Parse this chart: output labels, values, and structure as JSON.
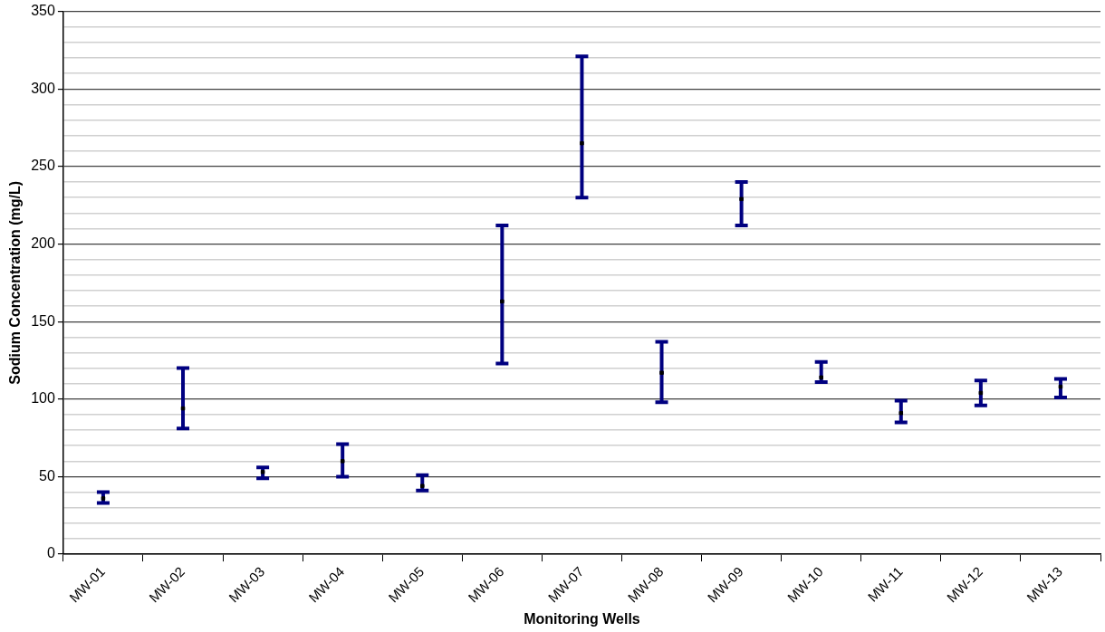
{
  "chart_data": {
    "type": "scatter",
    "xlabel": "Monitoring Wells",
    "ylabel": "Sodium Concentration (mg/L)",
    "categories": [
      "MW-01",
      "MW-02",
      "MW-03",
      "MW-04",
      "MW-05",
      "MW-06",
      "MW-07",
      "MW-08",
      "MW-09",
      "MW-10",
      "MW-11",
      "MW-12",
      "MW-13"
    ],
    "series": [
      {
        "color": "#000080",
        "colors": [
          "#000000",
          "#000000",
          "#000000",
          "#000000",
          "#000000",
          "#000000",
          "#000000",
          "#000000",
          "#000000",
          "#000000",
          "#000000",
          "#000000",
          "#000000"
        ],
        "values": [
          36,
          94,
          53,
          60,
          44,
          163,
          265,
          117,
          229,
          114,
          91,
          104,
          108
        ],
        "errors": [
          [
            33,
            40
          ],
          [
            81,
            120
          ],
          [
            49,
            56
          ],
          [
            50,
            71
          ],
          [
            41,
            51
          ],
          [
            123,
            212
          ],
          [
            230,
            321
          ],
          [
            98,
            137
          ],
          [
            212,
            240
          ],
          [
            111,
            124
          ],
          [
            85,
            99
          ],
          [
            96,
            112
          ],
          [
            101,
            113
          ]
        ]
      }
    ],
    "ylim": [
      0,
      350
    ],
    "yticks": [
      0,
      {
        "value": 10,
        "label": null
      },
      {
        "value": 20,
        "label": null
      },
      {
        "value": 30,
        "label": null
      },
      {
        "value": 40,
        "label": null
      },
      50,
      {
        "value": 60,
        "label": null
      },
      {
        "value": 70,
        "label": null
      },
      {
        "value": 80,
        "label": null
      },
      {
        "value": 90,
        "label": null
      },
      100,
      {
        "value": 110,
        "label": null
      },
      {
        "value": 120,
        "label": null
      },
      {
        "value": 130,
        "label": null
      },
      {
        "value": 140,
        "label": null
      },
      150,
      {
        "value": 160,
        "label": null
      },
      {
        "value": 170,
        "label": null
      },
      {
        "value": 180,
        "label": null
      },
      {
        "value": 190,
        "label": null
      },
      200,
      {
        "value": 210,
        "label": null
      },
      {
        "value": 220,
        "label": null
      },
      {
        "value": 230,
        "label": null
      },
      {
        "value": 240,
        "label": null
      },
      250,
      {
        "value": 260,
        "label": null
      },
      {
        "value": 270,
        "label": null
      },
      {
        "value": 280,
        "label": null
      },
      {
        "value": 290,
        "label": null
      },
      300,
      {
        "value": 310,
        "label": null
      },
      {
        "value": 320,
        "label": null
      },
      {
        "value": 330,
        "label": null
      },
      {
        "value": 340,
        "label": null
      },
      350
    ],
    "grid": "y",
    "legend": false,
    "marker": "square"
  }
}
